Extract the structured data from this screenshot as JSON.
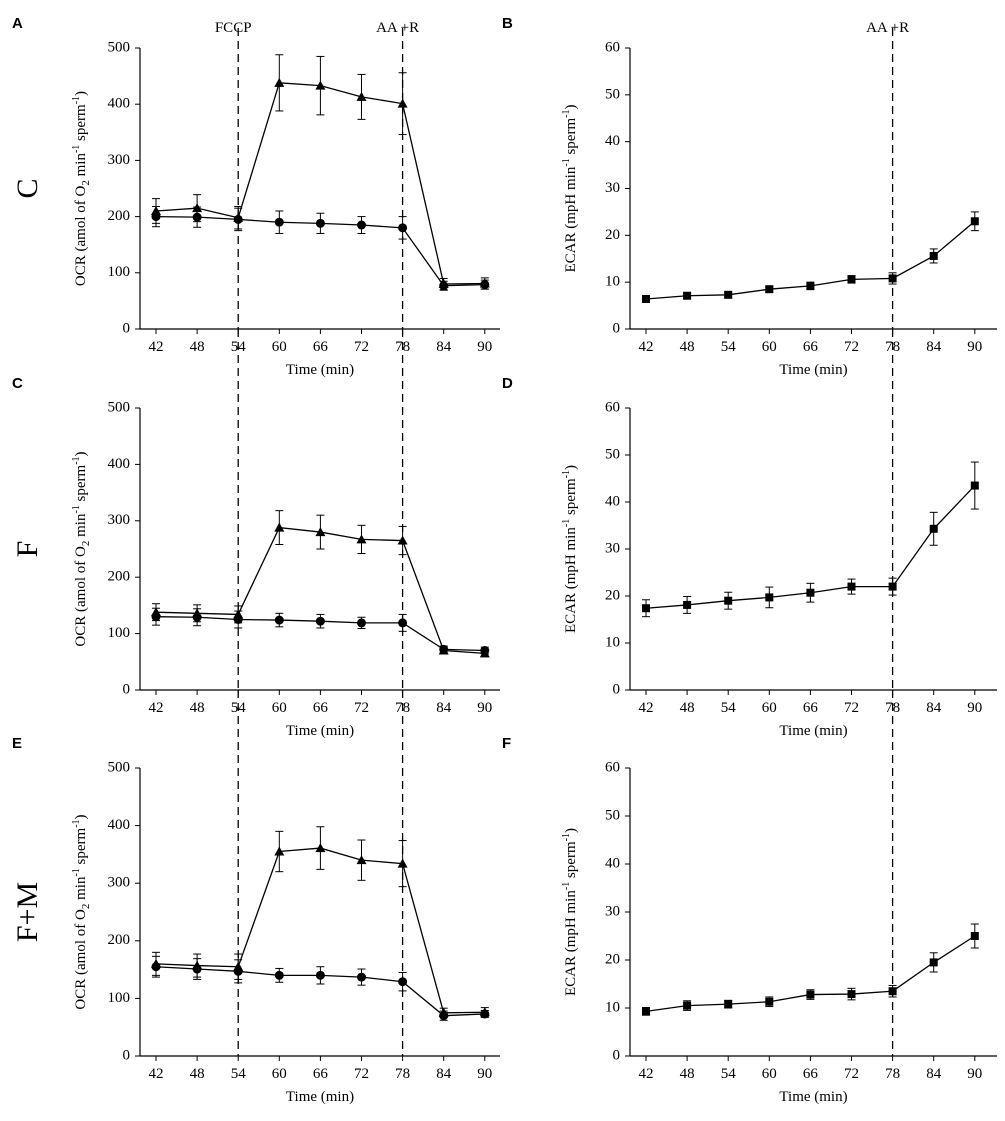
{
  "row_labels": [
    "C",
    "F",
    "F+M"
  ],
  "annotations": {
    "fccp": "FCCP",
    "aar": "AA +R"
  },
  "ocr_ylabel_parts": [
    "OCR (amol of O",
    "2",
    " min",
    "-1",
    " sperm",
    "-1",
    ")"
  ],
  "ecar_ylabel_parts": [
    "ECAR (mpH min",
    "-1",
    " sperm",
    "-1",
    ")"
  ],
  "chart_data": [
    {
      "panel": "A",
      "type": "line",
      "row": "C",
      "xlabel": "Time (min)",
      "ylabel": "OCR (amol of O2 min-1 sperm-1)",
      "x": [
        42,
        48,
        54,
        60,
        66,
        72,
        78,
        84,
        90
      ],
      "xticks": [
        "42",
        "48",
        "54",
        "60",
        "66",
        "72",
        "78",
        "84",
        "90"
      ],
      "yticks": [
        "0",
        "100",
        "200",
        "300",
        "400",
        "500"
      ],
      "ylim": [
        0,
        500
      ],
      "vlines": [
        {
          "x": 54,
          "label": "FCCP"
        },
        {
          "x": 78,
          "label": "AA +R"
        }
      ],
      "series": [
        {
          "marker": "triangle",
          "values": [
            210,
            215,
            198,
            438,
            433,
            413,
            401,
            80,
            81
          ],
          "errors": [
            22,
            24,
            20,
            50,
            52,
            40,
            55,
            10,
            10
          ]
        },
        {
          "marker": "circle",
          "values": [
            200,
            199,
            195,
            190,
            188,
            185,
            180,
            77,
            79
          ],
          "errors": [
            18,
            18,
            20,
            20,
            18,
            15,
            20,
            8,
            8
          ]
        }
      ]
    },
    {
      "panel": "B",
      "type": "line",
      "row": "C",
      "xlabel": "Time (min)",
      "ylabel": "ECAR (mpH min-1 sperm-1)",
      "x": [
        42,
        48,
        54,
        60,
        66,
        72,
        78,
        84,
        90
      ],
      "xticks": [
        "42",
        "48",
        "54",
        "60",
        "66",
        "72",
        "78",
        "84",
        "90"
      ],
      "yticks": [
        "0",
        "10",
        "20",
        "30",
        "40",
        "50",
        "60"
      ],
      "ylim": [
        0,
        60
      ],
      "vlines": [
        {
          "x": 78,
          "label": "AA +R"
        }
      ],
      "series": [
        {
          "marker": "square",
          "values": [
            6.4,
            7.1,
            7.3,
            8.5,
            9.2,
            10.6,
            10.8,
            15.6,
            23.0
          ],
          "errors": [
            0.5,
            0.5,
            0.5,
            0.6,
            0.8,
            0.8,
            1.2,
            1.5,
            2.0
          ]
        }
      ]
    },
    {
      "panel": "C",
      "type": "line",
      "row": "F",
      "xlabel": "Time (min)",
      "ylabel": "OCR (amol of O2 min-1 sperm-1)",
      "x": [
        42,
        48,
        54,
        60,
        66,
        72,
        78,
        84,
        90
      ],
      "xticks": [
        "42",
        "48",
        "54",
        "60",
        "66",
        "72",
        "78",
        "84",
        "90"
      ],
      "yticks": [
        "0",
        "100",
        "200",
        "300",
        "400",
        "500"
      ],
      "ylim": [
        0,
        500
      ],
      "vlines": [
        {
          "x": 54
        },
        {
          "x": 78
        }
      ],
      "series": [
        {
          "marker": "triangle",
          "values": [
            138,
            136,
            134,
            288,
            280,
            267,
            265,
            70,
            65
          ],
          "errors": [
            15,
            15,
            15,
            30,
            30,
            25,
            25,
            6,
            6
          ]
        },
        {
          "marker": "circle",
          "values": [
            130,
            129,
            125,
            124,
            122,
            119,
            119,
            72,
            70
          ],
          "errors": [
            15,
            15,
            15,
            12,
            12,
            10,
            15,
            6,
            6
          ]
        }
      ]
    },
    {
      "panel": "D",
      "type": "line",
      "row": "F",
      "xlabel": "Time (min)",
      "ylabel": "ECAR (mpH min-1 sperm-1)",
      "x": [
        42,
        48,
        54,
        60,
        66,
        72,
        78,
        84,
        90
      ],
      "xticks": [
        "42",
        "48",
        "54",
        "60",
        "66",
        "72",
        "78",
        "84",
        "90"
      ],
      "yticks": [
        "0",
        "10",
        "20",
        "30",
        "40",
        "50",
        "60"
      ],
      "ylim": [
        0,
        60
      ],
      "vlines": [
        {
          "x": 78
        }
      ],
      "series": [
        {
          "marker": "square",
          "values": [
            17.4,
            18.1,
            19.0,
            19.7,
            20.7,
            22.0,
            22.0,
            34.3,
            43.5
          ],
          "errors": [
            1.8,
            1.8,
            1.8,
            2.2,
            2.0,
            1.6,
            1.8,
            3.5,
            5.0
          ]
        }
      ]
    },
    {
      "panel": "E",
      "type": "line",
      "row": "F+M",
      "xlabel": "Time (min)",
      "ylabel": "OCR (amol of O2 min-1 sperm-1)",
      "x": [
        42,
        48,
        54,
        60,
        66,
        72,
        78,
        84,
        90
      ],
      "xticks": [
        "42",
        "48",
        "54",
        "60",
        "66",
        "72",
        "78",
        "84",
        "90"
      ],
      "yticks": [
        "0",
        "100",
        "200",
        "300",
        "400",
        "500"
      ],
      "ylim": [
        0,
        500
      ],
      "vlines": [
        {
          "x": 54
        },
        {
          "x": 78
        }
      ],
      "series": [
        {
          "marker": "triangle",
          "values": [
            160,
            157,
            155,
            355,
            361,
            340,
            334,
            75,
            76
          ],
          "errors": [
            20,
            20,
            22,
            35,
            37,
            35,
            40,
            8,
            8
          ]
        },
        {
          "marker": "circle",
          "values": [
            155,
            151,
            147,
            140,
            140,
            137,
            129,
            70,
            73
          ],
          "errors": [
            18,
            18,
            20,
            12,
            15,
            14,
            16,
            8,
            6
          ]
        }
      ]
    },
    {
      "panel": "F",
      "type": "line",
      "row": "F+M",
      "xlabel": "Time (min)",
      "ylabel": "ECAR (mpH min-1 sperm-1)",
      "x": [
        42,
        48,
        54,
        60,
        66,
        72,
        78,
        84,
        90
      ],
      "xticks": [
        "42",
        "48",
        "54",
        "60",
        "66",
        "72",
        "78",
        "84",
        "90"
      ],
      "yticks": [
        "0",
        "10",
        "20",
        "30",
        "40",
        "50",
        "60"
      ],
      "ylim": [
        0,
        60
      ],
      "vlines": [
        {
          "x": 78
        }
      ],
      "series": [
        {
          "marker": "square",
          "values": [
            9.3,
            10.5,
            10.8,
            11.3,
            12.8,
            12.9,
            13.5,
            19.5,
            25.0
          ],
          "errors": [
            0.8,
            1.0,
            0.8,
            1.0,
            1.0,
            1.2,
            1.2,
            2.0,
            2.5
          ]
        }
      ]
    }
  ]
}
